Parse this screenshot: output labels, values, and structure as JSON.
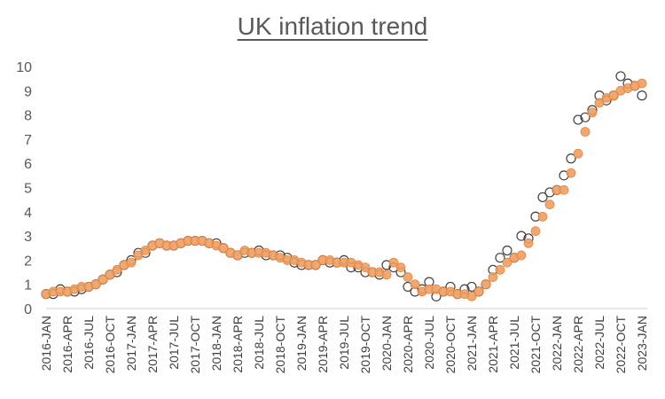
{
  "chart_data": {
    "type": "scatter",
    "title": "UK inflation trend",
    "xlabel": "",
    "ylabel": "",
    "ylim": [
      0,
      10
    ],
    "yticks": [
      0,
      1,
      2,
      3,
      4,
      5,
      6,
      7,
      8,
      9,
      10
    ],
    "grid": false,
    "legend": "none",
    "x_tick_labels": [
      "2016-JAN",
      "2016-APR",
      "2016-JUL",
      "2016-OCT",
      "2017-JAN",
      "2017-APR",
      "2017-JUL",
      "2017-OCT",
      "2018-JAN",
      "2018-APR",
      "2018-JUL",
      "2018-OCT",
      "2019-JAN",
      "2019-APR",
      "2019-JUL",
      "2019-OCT",
      "2020-JAN",
      "2020-APR",
      "2020-JUL",
      "2020-OCT",
      "2021-JAN",
      "2021-APR",
      "2021-JUL",
      "2021-OCT",
      "2022-JAN",
      "2022-APR",
      "2022-JUL",
      "2022-OCT",
      "2023-JAN"
    ],
    "x": [
      "2016-JAN",
      "2016-FEB",
      "2016-MAR",
      "2016-APR",
      "2016-MAY",
      "2016-JUN",
      "2016-JUL",
      "2016-AUG",
      "2016-SEP",
      "2016-OCT",
      "2016-NOV",
      "2016-DEC",
      "2017-JAN",
      "2017-FEB",
      "2017-MAR",
      "2017-APR",
      "2017-MAY",
      "2017-JUN",
      "2017-JUL",
      "2017-AUG",
      "2017-SEP",
      "2017-OCT",
      "2017-NOV",
      "2017-DEC",
      "2018-JAN",
      "2018-FEB",
      "2018-MAR",
      "2018-APR",
      "2018-MAY",
      "2018-JUN",
      "2018-JUL",
      "2018-AUG",
      "2018-SEP",
      "2018-OCT",
      "2018-NOV",
      "2018-DEC",
      "2019-JAN",
      "2019-FEB",
      "2019-MAR",
      "2019-APR",
      "2019-MAY",
      "2019-JUN",
      "2019-JUL",
      "2019-AUG",
      "2019-SEP",
      "2019-OCT",
      "2019-NOV",
      "2019-DEC",
      "2020-JAN",
      "2020-FEB",
      "2020-MAR",
      "2020-APR",
      "2020-MAY",
      "2020-JUN",
      "2020-JUL",
      "2020-AUG",
      "2020-SEP",
      "2020-OCT",
      "2020-NOV",
      "2020-DEC",
      "2021-JAN",
      "2021-FEB",
      "2021-MAR",
      "2021-APR",
      "2021-MAY",
      "2021-JUN",
      "2021-JUL",
      "2021-AUG",
      "2021-SEP",
      "2021-OCT",
      "2021-NOV",
      "2021-DEC",
      "2022-JAN",
      "2022-FEB",
      "2022-MAR",
      "2022-APR",
      "2022-MAY",
      "2022-JUN",
      "2022-JUL",
      "2022-AUG",
      "2022-SEP",
      "2022-OCT",
      "2022-NOV",
      "2022-DEC",
      "2023-JAN"
    ],
    "series": [
      {
        "marker": "open-circle",
        "color": "#404040",
        "values": [
          0.6,
          0.6,
          0.8,
          0.7,
          0.7,
          0.8,
          0.9,
          1.0,
          1.2,
          1.4,
          1.5,
          1.8,
          2.0,
          2.3,
          2.3,
          2.6,
          2.7,
          2.6,
          2.6,
          2.7,
          2.8,
          2.8,
          2.8,
          2.7,
          2.7,
          2.5,
          2.3,
          2.2,
          2.3,
          2.3,
          2.4,
          2.2,
          2.2,
          2.2,
          2.1,
          1.9,
          1.8,
          1.8,
          1.8,
          2.0,
          1.9,
          1.9,
          2.0,
          1.7,
          1.7,
          1.5,
          1.5,
          1.4,
          1.8,
          1.7,
          1.5,
          0.9,
          0.7,
          0.8,
          1.1,
          0.5,
          0.7,
          0.9,
          0.6,
          0.8,
          0.9,
          0.7,
          1.0,
          1.6,
          2.1,
          2.4,
          2.1,
          3.0,
          2.9,
          3.8,
          4.6,
          4.8,
          4.9,
          5.5,
          6.2,
          7.8,
          7.9,
          8.2,
          8.8,
          8.6,
          8.8,
          9.6,
          9.3,
          9.2,
          8.8
        ]
      },
      {
        "marker": "filled-circle",
        "color": "#ED9E63",
        "values": [
          0.6,
          0.7,
          0.7,
          0.7,
          0.8,
          0.9,
          0.9,
          1.0,
          1.2,
          1.4,
          1.6,
          1.8,
          1.9,
          2.2,
          2.4,
          2.6,
          2.7,
          2.6,
          2.6,
          2.7,
          2.8,
          2.8,
          2.8,
          2.7,
          2.6,
          2.5,
          2.3,
          2.2,
          2.4,
          2.3,
          2.3,
          2.3,
          2.2,
          2.1,
          2.0,
          2.0,
          1.9,
          1.8,
          1.8,
          2.0,
          2.0,
          1.9,
          1.9,
          1.9,
          1.8,
          1.7,
          1.5,
          1.5,
          1.4,
          1.9,
          1.7,
          1.3,
          1.0,
          0.7,
          0.8,
          0.8,
          0.7,
          0.7,
          0.6,
          0.6,
          0.5,
          0.7,
          1.0,
          1.3,
          1.6,
          1.9,
          2.1,
          2.2,
          2.7,
          3.2,
          3.8,
          4.3,
          4.9,
          4.9,
          5.6,
          6.4,
          7.3,
          8.1,
          8.5,
          8.7,
          8.8,
          9.0,
          9.1,
          9.2,
          9.3
        ]
      }
    ]
  }
}
